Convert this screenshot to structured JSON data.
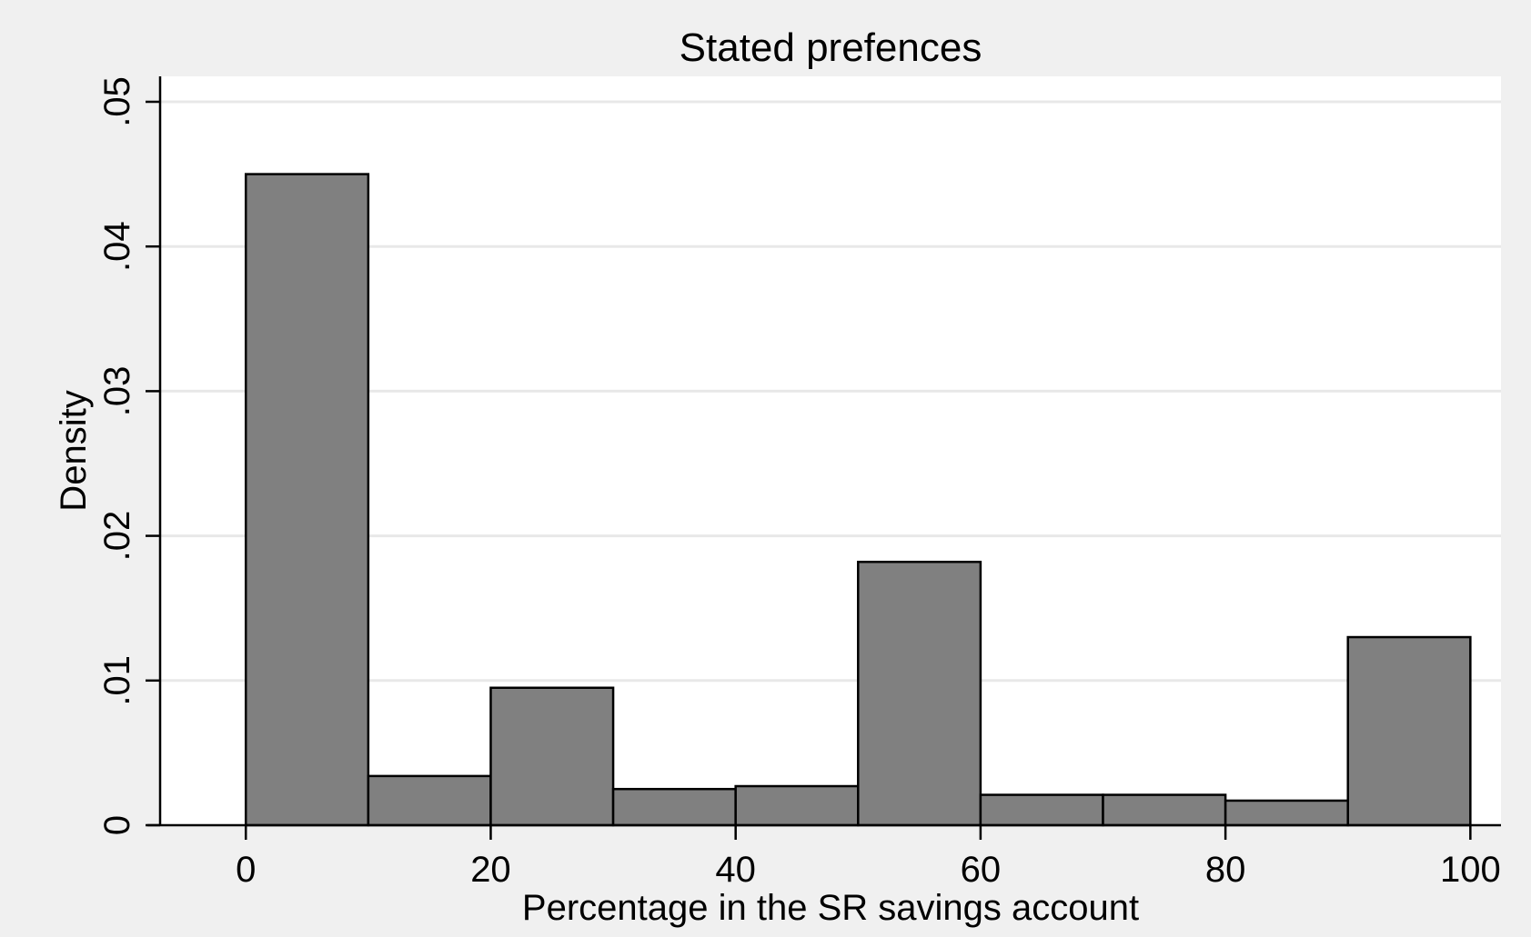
{
  "chart_data": {
    "type": "bar",
    "title": "Stated prefences",
    "xlabel": "Percentage in the SR savings account",
    "ylabel": "Density",
    "xlim": [
      -7,
      102.5
    ],
    "ylim": [
      0,
      0.05
    ],
    "x_ticks": [
      {
        "value": 0,
        "label": "0"
      },
      {
        "value": 20,
        "label": "20"
      },
      {
        "value": 40,
        "label": "40"
      },
      {
        "value": 60,
        "label": "60"
      },
      {
        "value": 80,
        "label": "80"
      },
      {
        "value": 100,
        "label": "100"
      }
    ],
    "y_ticks": [
      {
        "value": 0,
        "label": "0"
      },
      {
        "value": 0.01,
        "label": ".01"
      },
      {
        "value": 0.02,
        "label": ".02"
      },
      {
        "value": 0.03,
        "label": ".03"
      },
      {
        "value": 0.04,
        "label": ".04"
      },
      {
        "value": 0.05,
        "label": ".05"
      }
    ],
    "grid": true,
    "bins": [
      {
        "start": 0,
        "end": 10,
        "value": 0.045
      },
      {
        "start": 10,
        "end": 20,
        "value": 0.0034
      },
      {
        "start": 20,
        "end": 30,
        "value": 0.0095
      },
      {
        "start": 30,
        "end": 40,
        "value": 0.0025
      },
      {
        "start": 40,
        "end": 50,
        "value": 0.0027
      },
      {
        "start": 50,
        "end": 60,
        "value": 0.0182
      },
      {
        "start": 60,
        "end": 70,
        "value": 0.0021
      },
      {
        "start": 70,
        "end": 80,
        "value": 0.0021
      },
      {
        "start": 80,
        "end": 90,
        "value": 0.0017
      },
      {
        "start": 90,
        "end": 100,
        "value": 0.013
      }
    ],
    "colors": {
      "background": "#f0f0f0",
      "plot_background": "#ffffff",
      "bar_fill": "#808080",
      "bar_stroke": "#000000",
      "grid": "#e8e8e8"
    }
  }
}
